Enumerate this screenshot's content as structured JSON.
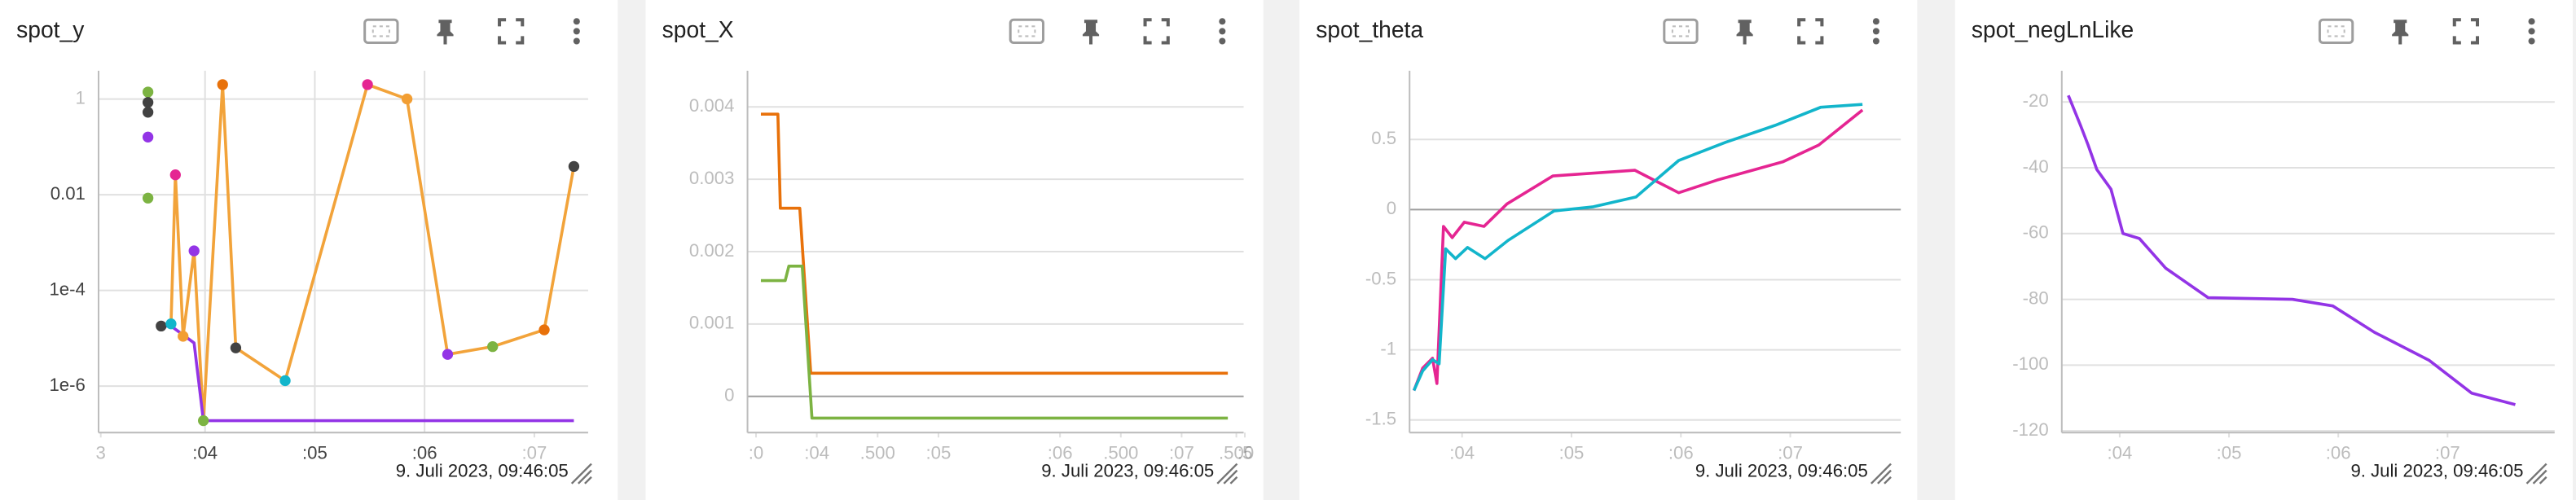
{
  "chart_data": [
    {
      "type": "line",
      "title": "spot_y",
      "annotation": "9. Juli 2023, 09:46:05",
      "log_y": true,
      "grid": true,
      "xlim": [
        3.03,
        7.49
      ],
      "ylim": [
        1.07e-07,
        3.9
      ],
      "xticks": [
        {
          "value": 3.05,
          "label": "3"
        },
        {
          "value": 4,
          "label": ":04"
        },
        {
          "value": 5,
          "label": ":05"
        },
        {
          "value": 6,
          "label": ":06"
        },
        {
          "value": 7,
          "label": ":07"
        }
      ],
      "yticks": [
        1,
        0.01,
        {
          "value": 0.0001,
          "label": "1e-4"
        },
        {
          "value": 1e-06,
          "label": "1e-6"
        }
      ],
      "series": [
        {
          "color": "#f2a33a",
          "x": [
            3.69,
            3.73,
            3.8,
            3.9,
            3.985,
            4.16,
            4.28,
            4.73,
            5.48,
            5.84,
            6.21,
            6.62,
            7.09,
            7.36
          ],
          "values": [
            2e-05,
            0.026,
            1.1e-05,
            0.00067,
            1.9e-07,
            2,
            6.3e-06,
            1.3e-06,
            2,
            1,
            4.6e-06,
            6.7e-06,
            1.5e-05,
            0.039
          ]
        },
        {
          "color": "#9334e6",
          "x": [
            3.6,
            3.69,
            3.9,
            3.985,
            7.36
          ],
          "values": [
            1.8e-05,
            1.8e-05,
            8e-06,
            1.9e-07,
            1.9e-07
          ]
        },
        {
          "markers": true,
          "x": [
            3.48,
            3.48,
            3.48,
            3.48,
            3.48,
            3.6,
            3.69,
            3.73,
            3.8,
            3.9,
            3.985,
            4.16,
            4.28,
            4.73,
            5.48,
            5.84,
            6.21,
            6.62,
            7.09,
            7.36
          ],
          "values": [
            1.4,
            0.85,
            0.53,
            0.16,
            0.0085,
            1.8e-05,
            2e-05,
            0.026,
            1.1e-05,
            0.00067,
            1.9e-07,
            2,
            6.3e-06,
            1.3e-06,
            2,
            1,
            4.6e-06,
            6.7e-06,
            1.5e-05,
            0.039
          ],
          "colors": [
            "#7cb342",
            "#424242",
            "#424242",
            "#9334e6",
            "#7cb342",
            "#424242",
            "#12b5cb",
            "#e52592",
            "#f29e33",
            "#9334e6",
            "#7cb342",
            "#e8710a",
            "#424242",
            "#12b5cb",
            "#e52592",
            "#f29e33",
            "#9334e6",
            "#7cb342",
            "#e8710a",
            "#424242"
          ]
        }
      ]
    },
    {
      "type": "line",
      "title": "spot_X",
      "annotation": "9. Juli 2023, 09:46:05",
      "grid": true,
      "xlim": [
        3.43,
        7.51
      ],
      "ylim": [
        -0.0005,
        0.0045
      ],
      "xticks": [
        {
          "value": 3.5,
          "label": ":0"
        },
        {
          "value": 4,
          "label": ":04"
        },
        {
          "value": 4.5,
          "label": ".500"
        },
        {
          "value": 5,
          "label": ":05"
        },
        {
          "value": 6,
          "label": ":06"
        },
        {
          "value": 6.5,
          "label": ".500"
        },
        {
          "value": 7,
          "label": ":07"
        },
        {
          "value": 7.45,
          "label": ".500"
        },
        {
          "value": 7.52,
          "label": ":5"
        }
      ],
      "yticks": [
        0.004,
        0.003,
        0.002,
        0.001,
        0
      ],
      "series": [
        {
          "color": "#e8710a",
          "x": [
            3.54,
            3.68,
            3.7,
            3.77,
            3.86,
            3.95,
            7.38
          ],
          "values": [
            0.0039,
            0.0039,
            0.0026,
            0.0026,
            0.0026,
            0.00032,
            0.00032
          ]
        },
        {
          "color": "#7cb342",
          "x": [
            3.54,
            3.74,
            3.77,
            3.88,
            3.96,
            7.38
          ],
          "values": [
            0.0016,
            0.0016,
            0.0018,
            0.0018,
            -0.0003,
            -0.0003
          ]
        }
      ]
    },
    {
      "type": "line",
      "title": "spot_theta",
      "annotation": "9. Juli 2023, 09:46:05",
      "grid": true,
      "xlim": [
        3.52,
        8.01
      ],
      "ylim": [
        -1.59,
        0.99
      ],
      "xticks": [
        {
          "value": 4,
          "label": ":04"
        },
        {
          "value": 5,
          "label": ":05"
        },
        {
          "value": 6,
          "label": ":06"
        },
        {
          "value": 7,
          "label": ":07"
        }
      ],
      "yticks": [
        0.5,
        0,
        -0.5,
        -1,
        -1.5
      ],
      "series": [
        {
          "color": "#e52592",
          "x": [
            3.56,
            3.64,
            3.73,
            3.77,
            3.83,
            3.91,
            4.02,
            4.2,
            4.41,
            4.83,
            5.58,
            5.98,
            6.33,
            6.93,
            7.26,
            7.66
          ],
          "values": [
            -1.29,
            -1.13,
            -1.06,
            -1.24,
            -0.12,
            -0.2,
            -0.09,
            -0.12,
            0.04,
            0.24,
            0.28,
            0.12,
            0.21,
            0.34,
            0.46,
            0.71
          ]
        },
        {
          "color": "#12b5cb",
          "x": [
            3.56,
            3.64,
            3.73,
            3.79,
            3.85,
            3.94,
            4.05,
            4.21,
            4.42,
            4.84,
            5.2,
            5.59,
            5.98,
            6.41,
            6.86,
            7.28,
            7.66
          ],
          "values": [
            -1.29,
            -1.15,
            -1.07,
            -1.1,
            -0.28,
            -0.35,
            -0.27,
            -0.35,
            -0.22,
            -0.01,
            0.02,
            0.09,
            0.35,
            0.48,
            0.6,
            0.73,
            0.75
          ]
        }
      ]
    },
    {
      "type": "line",
      "title": "spot_negLnLike",
      "annotation": "9. Juli 2023, 09:46:05",
      "grid": true,
      "xlim": [
        3.47,
        7.98
      ],
      "ylim": [
        -120.5,
        -10.5
      ],
      "xticks": [
        {
          "value": 4,
          "label": ":04"
        },
        {
          "value": 5,
          "label": ":05"
        },
        {
          "value": 6,
          "label": ":06"
        },
        {
          "value": 7,
          "label": ":07"
        }
      ],
      "yticks": [
        -20,
        -40,
        -60,
        -80,
        -100,
        -120
      ],
      "series": [
        {
          "color": "#9334e6",
          "x": [
            3.53,
            3.64,
            3.71,
            3.79,
            3.92,
            4.03,
            4.18,
            4.42,
            4.81,
            5.58,
            5.95,
            6.33,
            6.83,
            7.22,
            7.62
          ],
          "values": [
            -18,
            -27,
            -33,
            -40.5,
            -46.5,
            -60,
            -61.5,
            -70.5,
            -79.5,
            -80,
            -82,
            -90,
            -98.5,
            -108.5,
            -112
          ]
        }
      ]
    }
  ]
}
